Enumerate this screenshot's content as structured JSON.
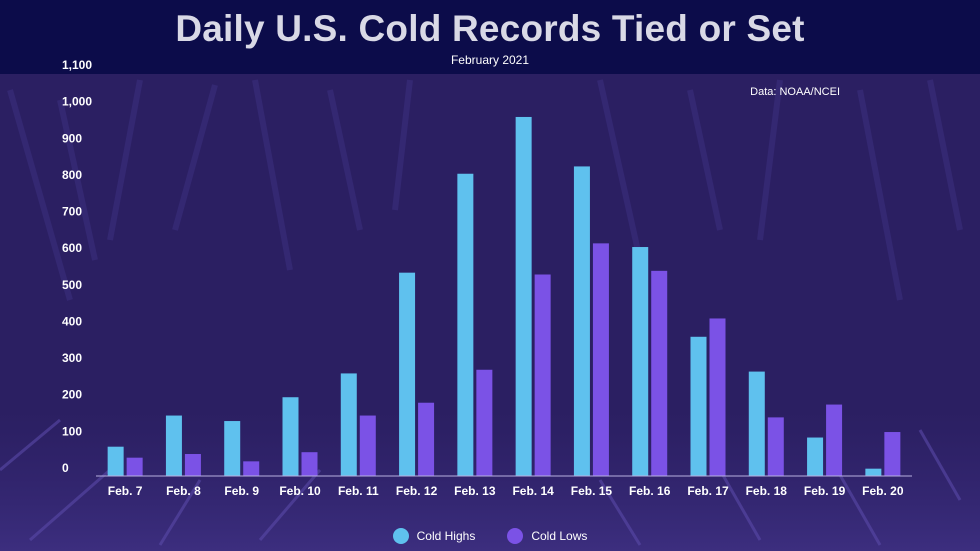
{
  "header": {
    "title": "Daily U.S. Cold Records Tied or Set",
    "subtitle": "February 2021"
  },
  "source_note": "Data: NOAA/NCEI",
  "colors": {
    "cold_highs": "#5fc1ee",
    "cold_lows": "#7b52e6",
    "title_bar": "#0c0c4a"
  },
  "chart_data": {
    "type": "bar",
    "title": "Daily U.S. Cold Records Tied or Set",
    "subtitle": "February 2021",
    "categories": [
      "Feb. 7",
      "Feb. 8",
      "Feb. 9",
      "Feb. 10",
      "Feb. 11",
      "Feb. 12",
      "Feb. 13",
      "Feb. 14",
      "Feb. 15",
      "Feb. 16",
      "Feb. 17",
      "Feb. 18",
      "Feb. 19",
      "Feb. 20"
    ],
    "series": [
      {
        "name": "Cold Highs",
        "values": [
          80,
          165,
          150,
          215,
          280,
          555,
          825,
          980,
          845,
          625,
          380,
          285,
          105,
          20
        ]
      },
      {
        "name": "Cold Lows",
        "values": [
          50,
          60,
          40,
          65,
          165,
          200,
          290,
          550,
          635,
          560,
          430,
          160,
          195,
          120
        ]
      }
    ],
    "yticks": [
      "0",
      "100",
      "200",
      "300",
      "400",
      "500",
      "600",
      "700",
      "800",
      "900",
      "1,000",
      "1,100"
    ],
    "ylim": [
      0,
      1100
    ],
    "xlabel": "",
    "ylabel": "",
    "legend": [
      "Cold Highs",
      "Cold Lows"
    ],
    "legend_position": "bottom-center",
    "grid": false
  }
}
